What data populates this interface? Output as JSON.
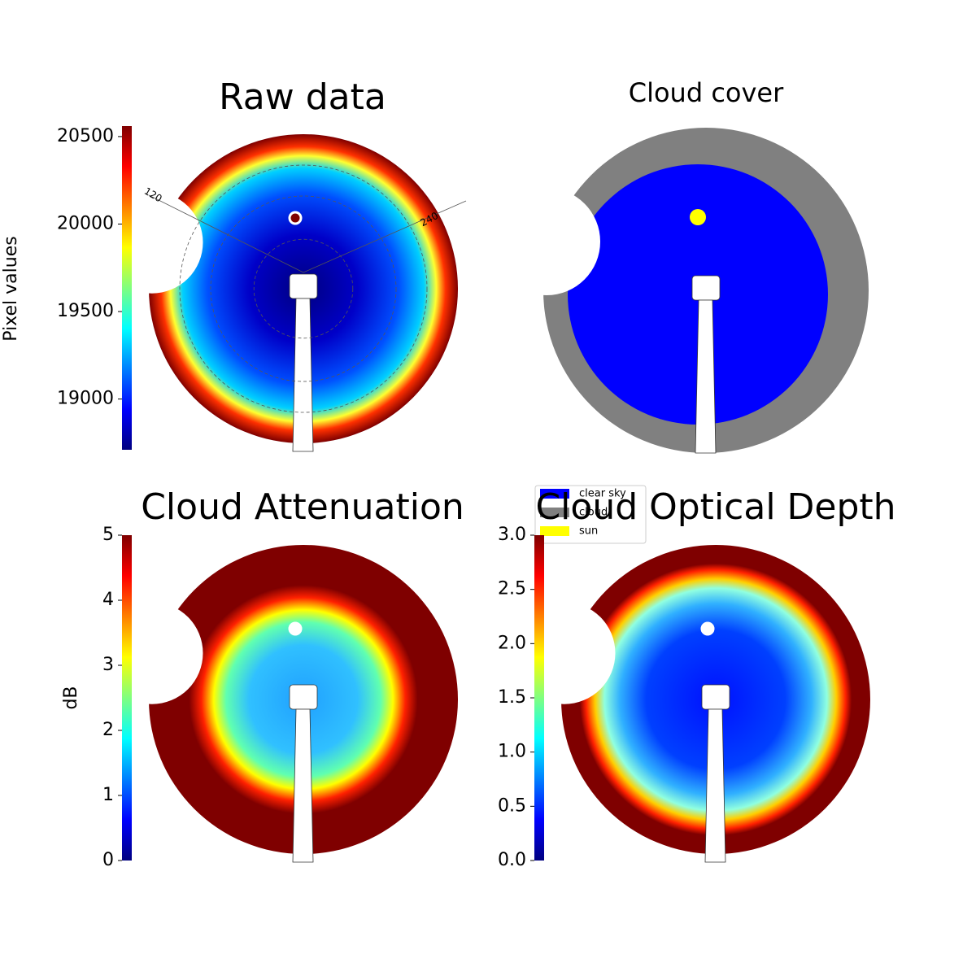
{
  "chart_data": [
    {
      "type": "image",
      "title": "Raw data",
      "colormap": "jet",
      "colorbar_label": "Pixel values",
      "ylim": [
        18710,
        20560
      ],
      "yticks": [
        19000,
        19500,
        20000,
        20500
      ],
      "annotations": [
        "120",
        "240"
      ],
      "style": "raw"
    },
    {
      "type": "classes",
      "title": "Cloud cover",
      "legend": [
        {
          "name": "clear sky",
          "color": "#0000ff"
        },
        {
          "name": "cloud",
          "color": "#808080"
        },
        {
          "name": "sun",
          "color": "#ffff00"
        }
      ]
    },
    {
      "type": "image",
      "title": "Cloud Attenuation",
      "colormap": "jet",
      "colorbar_label": "dB",
      "ylim": [
        0,
        5
      ],
      "yticks": [
        0,
        1,
        2,
        3,
        4,
        5
      ],
      "style": "attenuation"
    },
    {
      "type": "image",
      "title": "Cloud Optical Depth",
      "colormap": "jet",
      "ylim": [
        0,
        3
      ],
      "yticks": [
        {
          "value": 0,
          "label": "0.0"
        },
        0.5,
        {
          "value": 1,
          "label": "1.0"
        },
        1.5,
        {
          "value": 2,
          "label": "2.0"
        },
        2.5,
        {
          "value": 3,
          "label": "3.0"
        }
      ],
      "style": "cod"
    }
  ]
}
